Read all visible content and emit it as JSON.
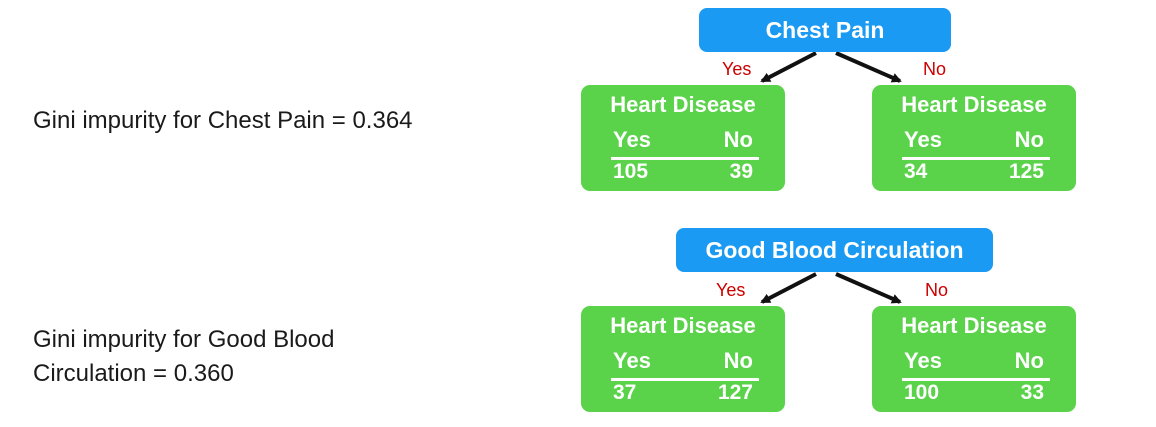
{
  "gini": {
    "chest_pain": "Gini impurity for Chest Pain = 0.364",
    "blood_line1": "Gini impurity for Good Blood",
    "blood_line2": "Circulation = 0.360"
  },
  "trees": [
    {
      "root": "Chest Pain",
      "yes_label": "Yes",
      "no_label": "No",
      "left": {
        "title": "Heart Disease",
        "col_yes": "Yes",
        "col_no": "No",
        "yes": "105",
        "no": "39"
      },
      "right": {
        "title": "Heart Disease",
        "col_yes": "Yes",
        "col_no": "No",
        "yes": "34",
        "no": "125"
      }
    },
    {
      "root": "Good Blood Circulation",
      "yes_label": "Yes",
      "no_label": "No",
      "left": {
        "title": "Heart Disease",
        "col_yes": "Yes",
        "col_no": "No",
        "yes": "37",
        "no": "127"
      },
      "right": {
        "title": "Heart Disease",
        "col_yes": "Yes",
        "col_no": "No",
        "yes": "100",
        "no": "33"
      }
    }
  ],
  "colors": {
    "root_node": "#1a9af3",
    "leaf_node": "#5ad34a",
    "branch_label": "#cc0000"
  }
}
